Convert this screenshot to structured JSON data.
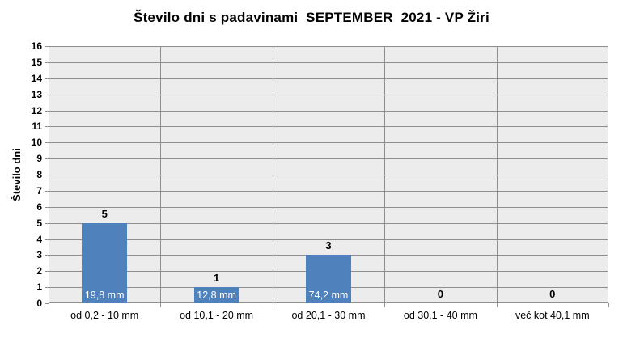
{
  "chart_data": {
    "type": "bar",
    "title": "Število dni s padavinami  SEPTEMBER  2021 - VP Žiri",
    "ylabel": "Število dni",
    "xlabel": "",
    "categories": [
      "od 0,2 - 10 mm",
      "od 10,1 - 20 mm",
      "od 20,1 - 30 mm",
      "od 30,1 - 40 mm",
      "več kot 40,1 mm"
    ],
    "values": [
      5,
      1,
      3,
      0,
      0
    ],
    "bar_inner_labels": [
      "19,8 mm",
      "12,8 mm",
      "74,2 mm",
      "",
      ""
    ],
    "ylim": [
      0,
      16
    ],
    "ytick_step": 1,
    "grid": true,
    "legend": "none",
    "colors": {
      "bar": "#4F81BD",
      "plot_bg": "#ECECEC",
      "gridline": "#8E8E8E",
      "bar_label_text": "#FFFFFF",
      "text": "#000000",
      "background": "#FFFFFF"
    }
  }
}
